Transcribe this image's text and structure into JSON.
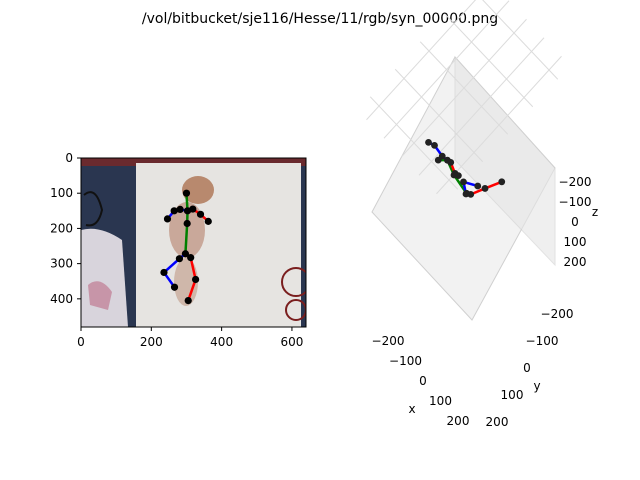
{
  "figure": {
    "title": "/vol/bitbucket/sje116/Hesse/11/rgb/syn_00000.png"
  },
  "chart_data": [
    {
      "type": "scatter",
      "description_kind": "image-with-2d-skeleton-overlay",
      "xlim": [
        0,
        640
      ],
      "ylim": [
        480,
        0
      ],
      "x_ticks": [
        "0",
        "200",
        "400",
        "600"
      ],
      "y_ticks": [
        "0",
        "100",
        "200",
        "300",
        "400"
      ],
      "joints": [
        {
          "id": "head",
          "x": 300,
          "y": 100
        },
        {
          "id": "neck",
          "x": 303,
          "y": 150
        },
        {
          "id": "r_shoulder",
          "x": 318,
          "y": 145
        },
        {
          "id": "r_elbow",
          "x": 340,
          "y": 160
        },
        {
          "id": "r_hand",
          "x": 362,
          "y": 180
        },
        {
          "id": "chest",
          "x": 302,
          "y": 186
        },
        {
          "id": "l_shoulder",
          "x": 282,
          "y": 146
        },
        {
          "id": "l_elbow",
          "x": 265,
          "y": 150
        },
        {
          "id": "l_hand",
          "x": 246,
          "y": 173
        },
        {
          "id": "pelvis",
          "x": 297,
          "y": 272
        },
        {
          "id": "r_hip",
          "x": 312,
          "y": 283
        },
        {
          "id": "r_knee",
          "x": 326,
          "y": 345
        },
        {
          "id": "r_foot",
          "x": 305,
          "y": 405
        },
        {
          "id": "l_hip",
          "x": 280,
          "y": 286
        },
        {
          "id": "l_knee",
          "x": 236,
          "y": 325
        },
        {
          "id": "l_foot",
          "x": 266,
          "y": 367
        }
      ],
      "bones": [
        {
          "from": "head",
          "to": "neck",
          "color": "#008000"
        },
        {
          "from": "neck",
          "to": "chest",
          "color": "#008000"
        },
        {
          "from": "chest",
          "to": "pelvis",
          "color": "#008000"
        },
        {
          "from": "neck",
          "to": "r_shoulder",
          "color": "#ff0000"
        },
        {
          "from": "r_shoulder",
          "to": "r_elbow",
          "color": "#ff0000"
        },
        {
          "from": "r_elbow",
          "to": "r_hand",
          "color": "#ff0000"
        },
        {
          "from": "neck",
          "to": "l_shoulder",
          "color": "#0000ff"
        },
        {
          "from": "l_shoulder",
          "to": "l_elbow",
          "color": "#0000ff"
        },
        {
          "from": "l_elbow",
          "to": "l_hand",
          "color": "#0000ff"
        },
        {
          "from": "pelvis",
          "to": "r_hip",
          "color": "#ff0000"
        },
        {
          "from": "r_hip",
          "to": "r_knee",
          "color": "#ff0000"
        },
        {
          "from": "r_knee",
          "to": "r_foot",
          "color": "#ff0000"
        },
        {
          "from": "pelvis",
          "to": "l_hip",
          "color": "#0000ff"
        },
        {
          "from": "l_hip",
          "to": "l_knee",
          "color": "#0000ff"
        },
        {
          "from": "l_knee",
          "to": "l_foot",
          "color": "#0000ff"
        }
      ]
    },
    {
      "type": "line",
      "description_kind": "3d-skeleton",
      "xlabel": "x",
      "ylabel": "y",
      "zlabel": "z",
      "x_ticks": [
        "−200",
        "−100",
        "0",
        "100",
        "200"
      ],
      "y_ticks": [
        "−200",
        "−100",
        "0",
        "100",
        "200"
      ],
      "z_ticks": [
        "−200",
        "−100",
        "0",
        "100",
        "200"
      ],
      "grid": true,
      "joints": [
        {
          "id": "head",
          "x": 10,
          "y": -110,
          "z": -150
        },
        {
          "id": "neck",
          "x": 5,
          "y": -70,
          "z": -120
        },
        {
          "id": "r_shoulder",
          "x": 10,
          "y": -60,
          "z": -110
        },
        {
          "id": "r_elbow",
          "x": 20,
          "y": -50,
          "z": -80
        },
        {
          "id": "r_hand",
          "x": 25,
          "y": -40,
          "z": -70
        },
        {
          "id": "l_shoulder",
          "x": -10,
          "y": -80,
          "z": -130
        },
        {
          "id": "l_elbow",
          "x": -40,
          "y": -90,
          "z": -150
        },
        {
          "id": "l_hand",
          "x": -60,
          "y": -100,
          "z": -155
        },
        {
          "id": "spine",
          "x": 0,
          "y": -40,
          "z": -60
        },
        {
          "id": "pelvis",
          "x": 0,
          "y": 10,
          "z": 20
        },
        {
          "id": "r_hip",
          "x": 10,
          "y": 20,
          "z": 25
        },
        {
          "id": "r_knee",
          "x": 20,
          "y": 70,
          "z": 40
        },
        {
          "id": "r_foot",
          "x": 30,
          "y": 130,
          "z": 60
        },
        {
          "id": "l_hip",
          "x": -10,
          "y": 15,
          "z": 30
        },
        {
          "id": "l_knee",
          "x": -60,
          "y": 40,
          "z": 40
        },
        {
          "id": "l_foot",
          "x": -50,
          "y": 90,
          "z": 80
        }
      ],
      "bones": [
        {
          "from": "head",
          "to": "neck",
          "color": "#008000"
        },
        {
          "from": "neck",
          "to": "spine",
          "color": "#008000"
        },
        {
          "from": "spine",
          "to": "pelvis",
          "color": "#008000"
        },
        {
          "from": "neck",
          "to": "r_shoulder",
          "color": "#ff0000"
        },
        {
          "from": "r_shoulder",
          "to": "r_elbow",
          "color": "#ff0000"
        },
        {
          "from": "r_elbow",
          "to": "r_hand",
          "color": "#ff0000"
        },
        {
          "from": "neck",
          "to": "l_shoulder",
          "color": "#0000ff"
        },
        {
          "from": "l_shoulder",
          "to": "l_elbow",
          "color": "#0000ff"
        },
        {
          "from": "l_elbow",
          "to": "l_hand",
          "color": "#0000ff"
        },
        {
          "from": "pelvis",
          "to": "r_hip",
          "color": "#ff0000"
        },
        {
          "from": "r_hip",
          "to": "r_knee",
          "color": "#ff0000"
        },
        {
          "from": "r_knee",
          "to": "r_foot",
          "color": "#ff0000"
        },
        {
          "from": "pelvis",
          "to": "l_hip",
          "color": "#0000ff"
        },
        {
          "from": "l_hip",
          "to": "l_knee",
          "color": "#0000ff"
        },
        {
          "from": "l_knee",
          "to": "l_foot",
          "color": "#0000ff"
        }
      ]
    }
  ]
}
